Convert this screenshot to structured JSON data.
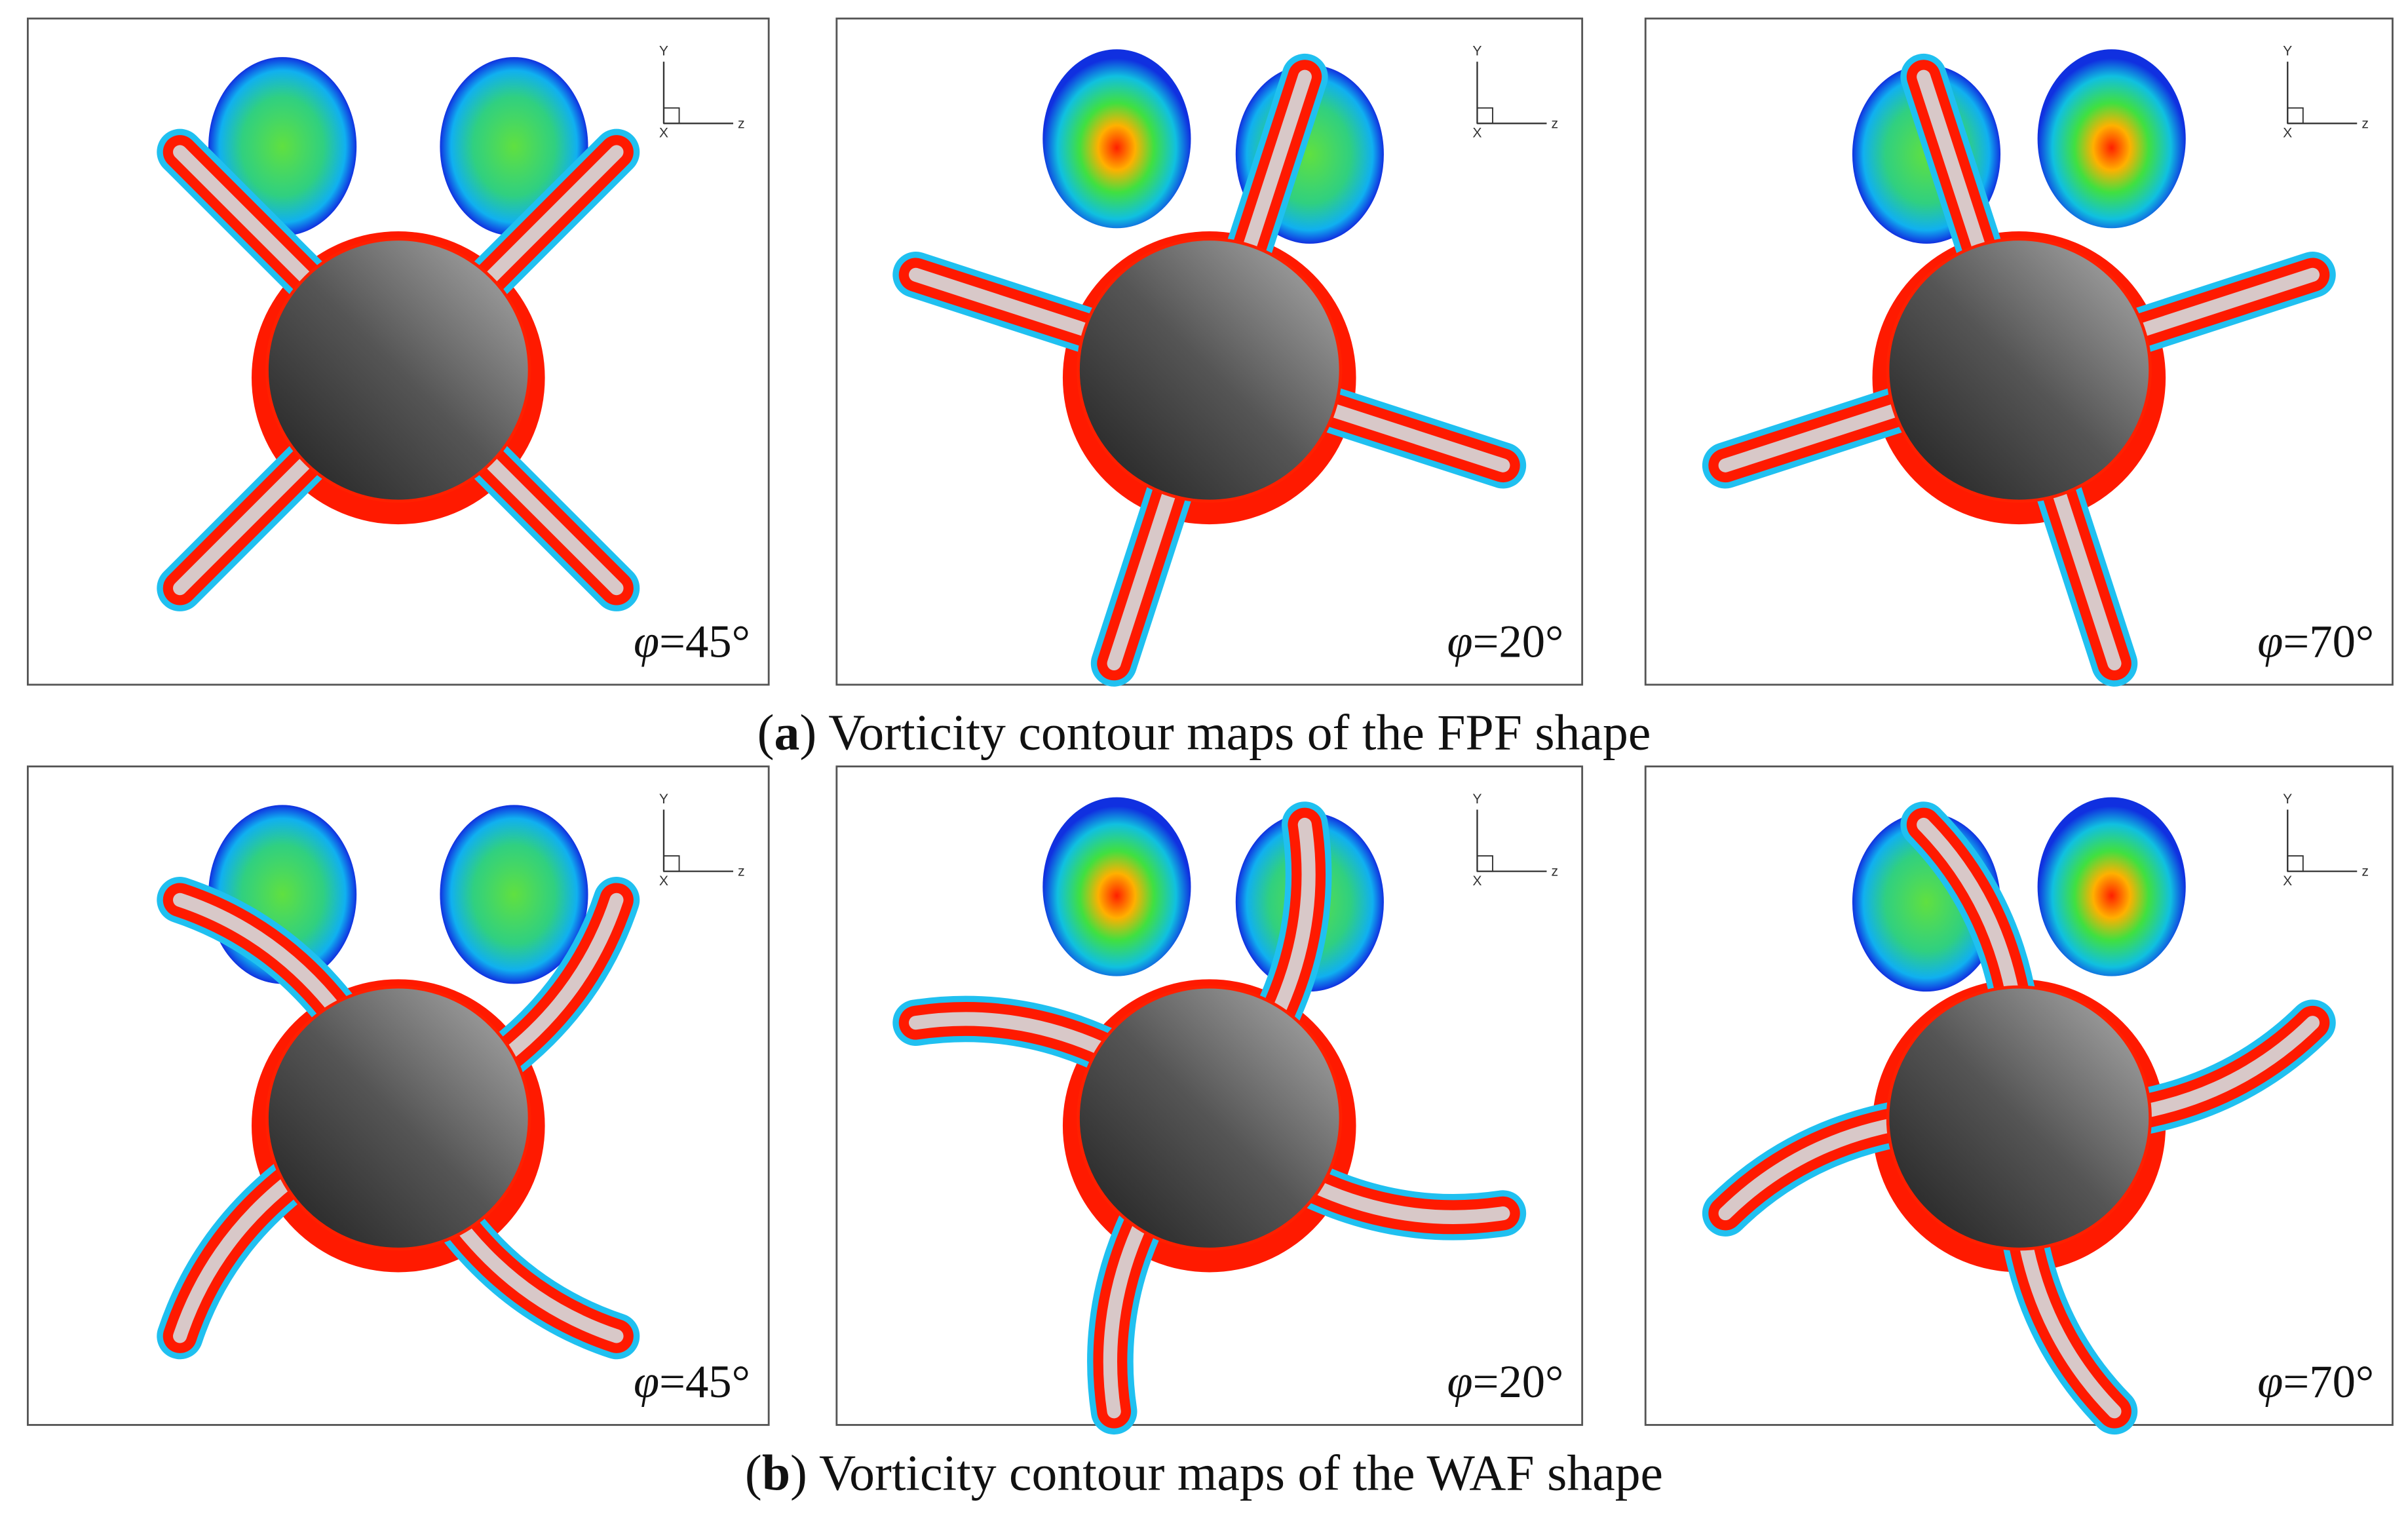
{
  "axis_labels": {
    "y": "Y",
    "z": "z",
    "x": "X"
  },
  "panels": [
    {
      "caption": {
        "open": "(",
        "letter": "a",
        "rest": ") Vorticity contour maps of the FPF shape"
      },
      "views": [
        {
          "symbol": "φ",
          "value": "=45°"
        },
        {
          "symbol": "φ",
          "value": "=20°"
        },
        {
          "symbol": "φ",
          "value": "=70°"
        }
      ]
    },
    {
      "caption": {
        "open": "(",
        "letter": "b",
        "rest": ") Vorticity contour maps of the WAF shape"
      },
      "views": [
        {
          "symbol": "φ",
          "value": "=45°"
        },
        {
          "symbol": "φ",
          "value": "=20°"
        },
        {
          "symbol": "φ",
          "value": "=70°"
        }
      ]
    }
  ]
}
